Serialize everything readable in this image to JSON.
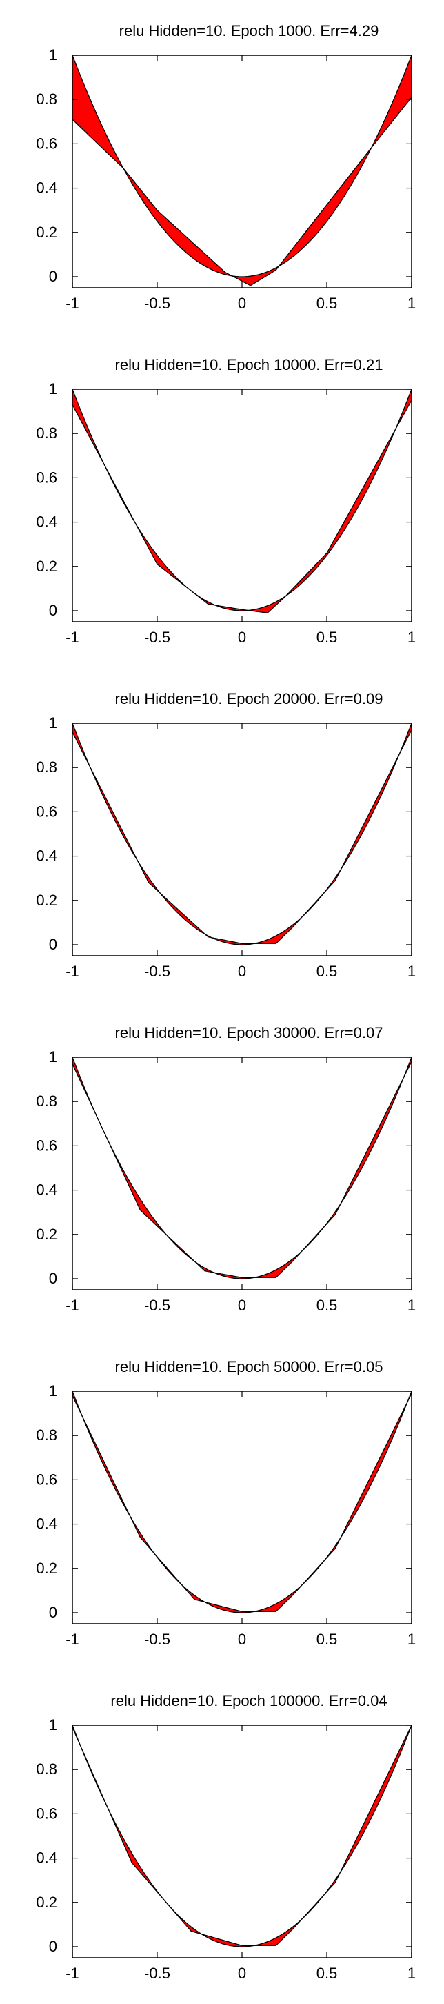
{
  "chart_data": [
    {
      "type": "area",
      "title": "relu Hidden=10. Epoch 1000. Err=4.29",
      "xlim": [
        -1,
        1
      ],
      "ylim": [
        -0.05,
        1
      ],
      "xticks": [
        "-1",
        "-0.5",
        "0",
        "0.5",
        "1"
      ],
      "yticks": [
        "0",
        "0.2",
        "0.4",
        "0.6",
        "0.8",
        "1"
      ],
      "grid": false,
      "series": [
        {
          "x": [
            -1,
            1
          ],
          "y": [
            1,
            1
          ],
          "shape": "x^2"
        },
        {
          "x": [
            -1,
            -0.7,
            -0.5,
            -0.1,
            0.05,
            0.2,
            0.75,
            1
          ],
          "y": [
            0.71,
            0.49,
            0.3,
            0.02,
            -0.04,
            0.03,
            0.57,
            0.81
          ]
        }
      ]
    },
    {
      "type": "area",
      "title": "relu Hidden=10. Epoch 10000. Err=0.21",
      "xlim": [
        -1,
        1
      ],
      "ylim": [
        -0.05,
        1
      ],
      "xticks": [
        "-1",
        "-0.5",
        "0",
        "0.5",
        "1"
      ],
      "yticks": [
        "0",
        "0.2",
        "0.4",
        "0.6",
        "0.8",
        "1"
      ],
      "grid": false,
      "series": [
        {
          "x": [
            -1,
            1
          ],
          "y": [
            1,
            1
          ],
          "shape": "x^2"
        },
        {
          "x": [
            -1,
            -0.5,
            -0.2,
            0,
            0.15,
            0.25,
            0.5,
            1
          ],
          "y": [
            0.93,
            0.21,
            0.03,
            0.005,
            -0.01,
            0.06,
            0.26,
            0.95
          ]
        }
      ]
    },
    {
      "type": "area",
      "title": "relu Hidden=10. Epoch 20000. Err=0.09",
      "xlim": [
        -1,
        1
      ],
      "ylim": [
        -0.05,
        1
      ],
      "xticks": [
        "-1",
        "-0.5",
        "0",
        "0.5",
        "1"
      ],
      "yticks": [
        "0",
        "0.2",
        "0.4",
        "0.6",
        "0.8",
        "1"
      ],
      "grid": false,
      "series": [
        {
          "x": [
            -1,
            1
          ],
          "y": [
            1,
            1
          ],
          "shape": "x^2"
        },
        {
          "x": [
            -1,
            -0.55,
            -0.2,
            0,
            0.2,
            0.3,
            0.55,
            1
          ],
          "y": [
            0.96,
            0.28,
            0.035,
            0.005,
            0.005,
            0.08,
            0.29,
            0.97
          ]
        }
      ]
    },
    {
      "type": "area",
      "title": "relu Hidden=10. Epoch 30000. Err=0.07",
      "xlim": [
        -1,
        1
      ],
      "ylim": [
        -0.05,
        1
      ],
      "xticks": [
        "-1",
        "-0.5",
        "0",
        "0.5",
        "1"
      ],
      "yticks": [
        "0",
        "0.2",
        "0.4",
        "0.6",
        "0.8",
        "1"
      ],
      "grid": false,
      "series": [
        {
          "x": [
            -1,
            1
          ],
          "y": [
            1,
            1
          ],
          "shape": "x^2"
        },
        {
          "x": [
            -1,
            -0.6,
            -0.22,
            0,
            0.2,
            0.3,
            0.55,
            1
          ],
          "y": [
            0.97,
            0.31,
            0.035,
            0.005,
            0.005,
            0.08,
            0.29,
            0.98
          ]
        }
      ]
    },
    {
      "type": "area",
      "title": "relu Hidden=10. Epoch 50000. Err=0.05",
      "xlim": [
        -1,
        1
      ],
      "ylim": [
        -0.05,
        1
      ],
      "xticks": [
        "-1",
        "-0.5",
        "0",
        "0.5",
        "1"
      ],
      "yticks": [
        "0",
        "0.2",
        "0.4",
        "0.6",
        "0.8",
        "1"
      ],
      "grid": false,
      "series": [
        {
          "x": [
            -1,
            1
          ],
          "y": [
            1,
            1
          ],
          "shape": "x^2"
        },
        {
          "x": [
            -1,
            -0.6,
            -0.28,
            0,
            0.2,
            0.3,
            0.55,
            1
          ],
          "y": [
            0.98,
            0.34,
            0.06,
            0.005,
            0.005,
            0.08,
            0.29,
            0.99
          ]
        }
      ]
    },
    {
      "type": "area",
      "title": "relu Hidden=10. Epoch 100000. Err=0.04",
      "xlim": [
        -1,
        1
      ],
      "ylim": [
        -0.05,
        1
      ],
      "xticks": [
        "-1",
        "-0.5",
        "0",
        "0.5",
        "1"
      ],
      "yticks": [
        "0",
        "0.2",
        "0.4",
        "0.6",
        "0.8",
        "1"
      ],
      "grid": false,
      "series": [
        {
          "x": [
            -1,
            1
          ],
          "y": [
            1,
            1
          ],
          "shape": "x^2"
        },
        {
          "x": [
            -1,
            -0.65,
            -0.3,
            0,
            0.2,
            0.3,
            0.55,
            1
          ],
          "y": [
            0.99,
            0.38,
            0.07,
            0.005,
            0.005,
            0.08,
            0.29,
            1.0
          ]
        }
      ]
    }
  ]
}
